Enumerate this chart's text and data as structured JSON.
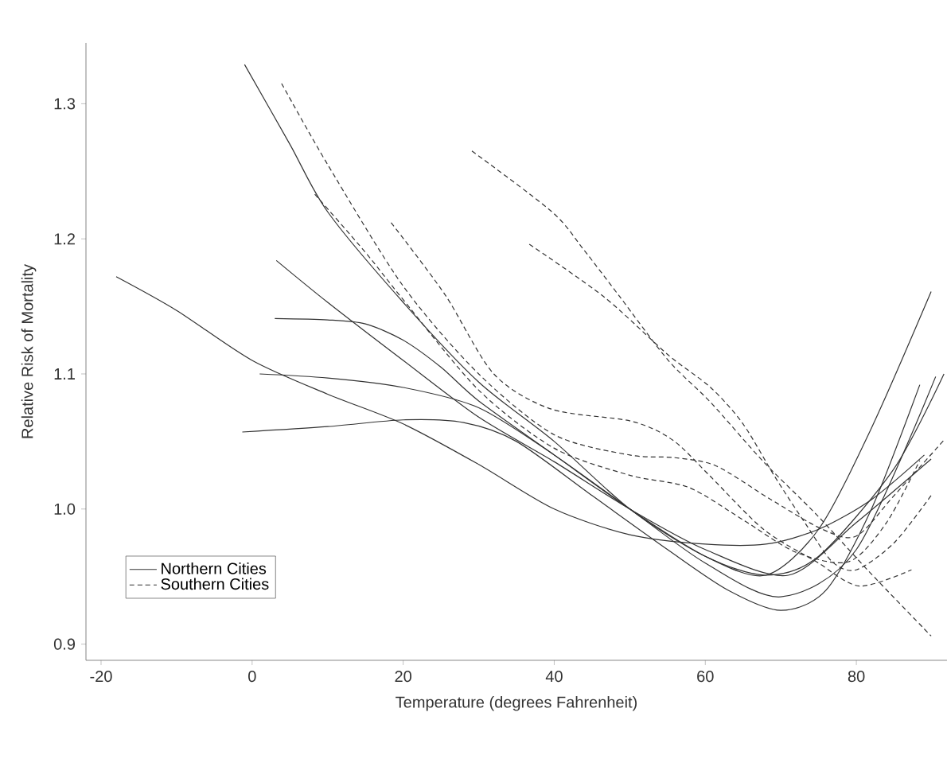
{
  "chart_data": {
    "type": "line",
    "xlabel": "Temperature (degrees Fahrenheit)",
    "ylabel": "Relative Risk of Mortality",
    "xlim": [
      -22,
      92
    ],
    "ylim": [
      0.888,
      1.345
    ],
    "xticks": [
      -20,
      0,
      20,
      40,
      60,
      80
    ],
    "yticks": [
      0.9,
      {
        "value": 1.0,
        "label": "1.0"
      },
      1.1,
      1.2,
      1.3
    ],
    "grid": false,
    "legend": "bottom left",
    "marker": "none",
    "series": [
      {
        "name": "Northern Cities",
        "color": "#333333",
        "line_style": "solid",
        "x": [
          -18,
          -10,
          0,
          10,
          20,
          30,
          40,
          50,
          60,
          68,
          75,
          82,
          89
        ],
        "values": [
          1.172,
          1.147,
          1.11,
          1.085,
          1.063,
          1.033,
          1.0,
          0.981,
          0.974,
          0.974,
          0.985,
          1.007,
          1.04
        ]
      },
      {
        "color": "#333333",
        "line_style": "solid",
        "x": [
          -1.3,
          10,
          20,
          28,
          35,
          45,
          55,
          63,
          70,
          76,
          82,
          88.4
        ],
        "values": [
          1.057,
          1.061,
          1.066,
          1.064,
          1.05,
          1.01,
          0.97,
          0.94,
          0.925,
          0.94,
          1.0,
          1.092
        ]
      },
      {
        "color": "#333333",
        "line_style": "solid",
        "x": [
          1,
          10,
          20,
          30,
          40,
          50,
          60,
          70,
          80,
          90.5
        ],
        "values": [
          1.1,
          1.097,
          1.09,
          1.075,
          1.04,
          1.0,
          0.96,
          0.935,
          0.97,
          1.098
        ]
      },
      {
        "color": "#333333",
        "line_style": "solid",
        "x": [
          3,
          10,
          15,
          20,
          25,
          30,
          40,
          50,
          60,
          68,
          75,
          85,
          91.6
        ],
        "values": [
          1.141,
          1.14,
          1.137,
          1.125,
          1.105,
          1.08,
          1.04,
          1.0,
          0.965,
          0.951,
          0.965,
          1.03,
          1.1
        ]
      },
      {
        "color": "#333333",
        "line_style": "solid",
        "x": [
          3.2,
          10,
          20,
          30,
          40,
          50,
          60,
          71,
          80,
          89.9
        ],
        "values": [
          1.184,
          1.153,
          1.11,
          1.068,
          1.035,
          1.0,
          0.97,
          0.951,
          0.99,
          1.037
        ]
      },
      {
        "color": "#333333",
        "line_style": "solid",
        "x": [
          -1,
          5,
          10,
          20,
          30,
          40,
          50,
          60,
          68,
          75,
          82,
          89.9
        ],
        "values": [
          1.329,
          1.27,
          1.22,
          1.153,
          1.094,
          1.05,
          1.0,
          0.965,
          0.951,
          0.985,
          1.06,
          1.161
        ]
      },
      {
        "name": "Southern Cities",
        "color": "#333333",
        "line_style": "dashed",
        "x": [
          3.9,
          10,
          20,
          30,
          40,
          50,
          56,
          61.4,
          68.4,
          75.5,
          80,
          85,
          91.6
        ],
        "values": [
          1.315,
          1.255,
          1.165,
          1.1,
          1.055,
          1.04,
          1.038,
          1.032,
          1.008,
          0.985,
          0.98,
          1.01,
          1.051
        ]
      },
      {
        "color": "#333333",
        "line_style": "dashed",
        "x": [
          8.3,
          15,
          20,
          30,
          40,
          50,
          57.8,
          65,
          72,
          79,
          84,
          88.4
        ],
        "values": [
          1.233,
          1.19,
          1.155,
          1.088,
          1.045,
          1.025,
          1.016,
          0.992,
          0.968,
          0.961,
          0.99,
          1.036
        ]
      },
      {
        "color": "#333333",
        "line_style": "dashed",
        "x": [
          18.4,
          25.5,
          32,
          39.6,
          50.2,
          55.7,
          60.7,
          67.7,
          74.7,
          80.4,
          87.3
        ],
        "values": [
          1.212,
          1.159,
          1.1,
          1.074,
          1.065,
          1.051,
          1.024,
          0.985,
          0.961,
          0.943,
          0.955
        ]
      },
      {
        "color": "#333333",
        "line_style": "dashed",
        "x": [
          29.1,
          39.7,
          43.9,
          48.7,
          55.1,
          60.7,
          67.7,
          74.7,
          81.8,
          89.9
        ],
        "values": [
          1.265,
          1.22,
          1.192,
          1.157,
          1.11,
          1.079,
          1.035,
          0.996,
          0.953,
          0.906
        ]
      },
      {
        "color": "#333333",
        "line_style": "dashed",
        "x": [
          36.7,
          46.6,
          55.1,
          60.7,
          65,
          69.2,
          73.4,
          76.8,
          80,
          85,
          89.9
        ],
        "values": [
          1.196,
          1.157,
          1.114,
          1.09,
          1.063,
          1.024,
          0.988,
          0.961,
          0.955,
          0.975,
          1.01
        ]
      }
    ]
  }
}
